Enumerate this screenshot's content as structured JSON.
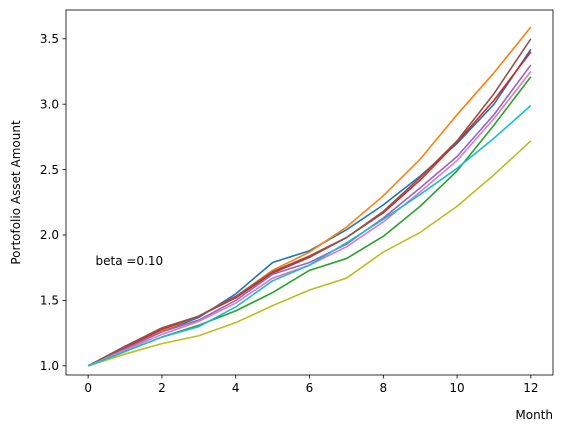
{
  "chart_data": {
    "type": "line",
    "title": "",
    "xlabel": "Month",
    "ylabel": "Portofolio Asset Amount",
    "xlim": [
      -0.6,
      12.6
    ],
    "ylim": [
      0.93,
      3.72
    ],
    "xticks": [
      0,
      2,
      4,
      6,
      8,
      10,
      12
    ],
    "xtick_labels": [
      "0",
      "2",
      "4",
      "6",
      "8",
      "10",
      "12"
    ],
    "yticks": [
      1.0,
      1.5,
      2.0,
      2.5,
      3.0,
      3.5
    ],
    "ytick_labels": [
      "1.0",
      "1.5",
      "2.0",
      "2.5",
      "3.0",
      "3.5"
    ],
    "grid": false,
    "annotation": {
      "text": "beta =0.10",
      "x": 0.2,
      "y": 1.8
    },
    "x": [
      0,
      1,
      2,
      3,
      4,
      5,
      6,
      7,
      8,
      9,
      10,
      11,
      12
    ],
    "series": [
      {
        "color": "#1f77b4",
        "values": [
          1.0,
          1.13,
          1.26,
          1.37,
          1.55,
          1.79,
          1.88,
          2.04,
          2.23,
          2.45,
          2.7,
          3.0,
          3.42
        ]
      },
      {
        "color": "#ff7f0e",
        "values": [
          1.0,
          1.14,
          1.27,
          1.38,
          1.53,
          1.73,
          1.87,
          2.06,
          2.3,
          2.58,
          2.92,
          3.24,
          3.59
        ]
      },
      {
        "color": "#2ca02c",
        "values": [
          1.0,
          1.11,
          1.22,
          1.31,
          1.42,
          1.56,
          1.73,
          1.82,
          1.99,
          2.22,
          2.49,
          2.84,
          3.21
        ]
      },
      {
        "color": "#d62728",
        "values": [
          1.0,
          1.14,
          1.28,
          1.38,
          1.52,
          1.71,
          1.83,
          1.98,
          2.17,
          2.42,
          2.71,
          3.03,
          3.4
        ]
      },
      {
        "color": "#9467bd",
        "values": [
          1.0,
          1.13,
          1.26,
          1.35,
          1.5,
          1.7,
          1.79,
          1.93,
          2.13,
          2.36,
          2.6,
          2.92,
          3.3
        ]
      },
      {
        "color": "#8c564b",
        "values": [
          1.0,
          1.15,
          1.29,
          1.38,
          1.53,
          1.72,
          1.84,
          1.98,
          2.18,
          2.44,
          2.72,
          3.08,
          3.5
        ]
      },
      {
        "color": "#e377c2",
        "values": [
          1.0,
          1.12,
          1.24,
          1.34,
          1.48,
          1.67,
          1.77,
          1.91,
          2.1,
          2.33,
          2.57,
          2.89,
          3.25
        ]
      },
      {
        "color": "#bcbd22",
        "values": [
          1.0,
          1.09,
          1.17,
          1.23,
          1.33,
          1.46,
          1.58,
          1.67,
          1.87,
          2.02,
          2.22,
          2.46,
          2.72
        ]
      },
      {
        "color": "#17becf",
        "values": [
          1.0,
          1.11,
          1.22,
          1.3,
          1.45,
          1.65,
          1.77,
          1.94,
          2.12,
          2.31,
          2.51,
          2.74,
          2.99
        ]
      }
    ]
  }
}
